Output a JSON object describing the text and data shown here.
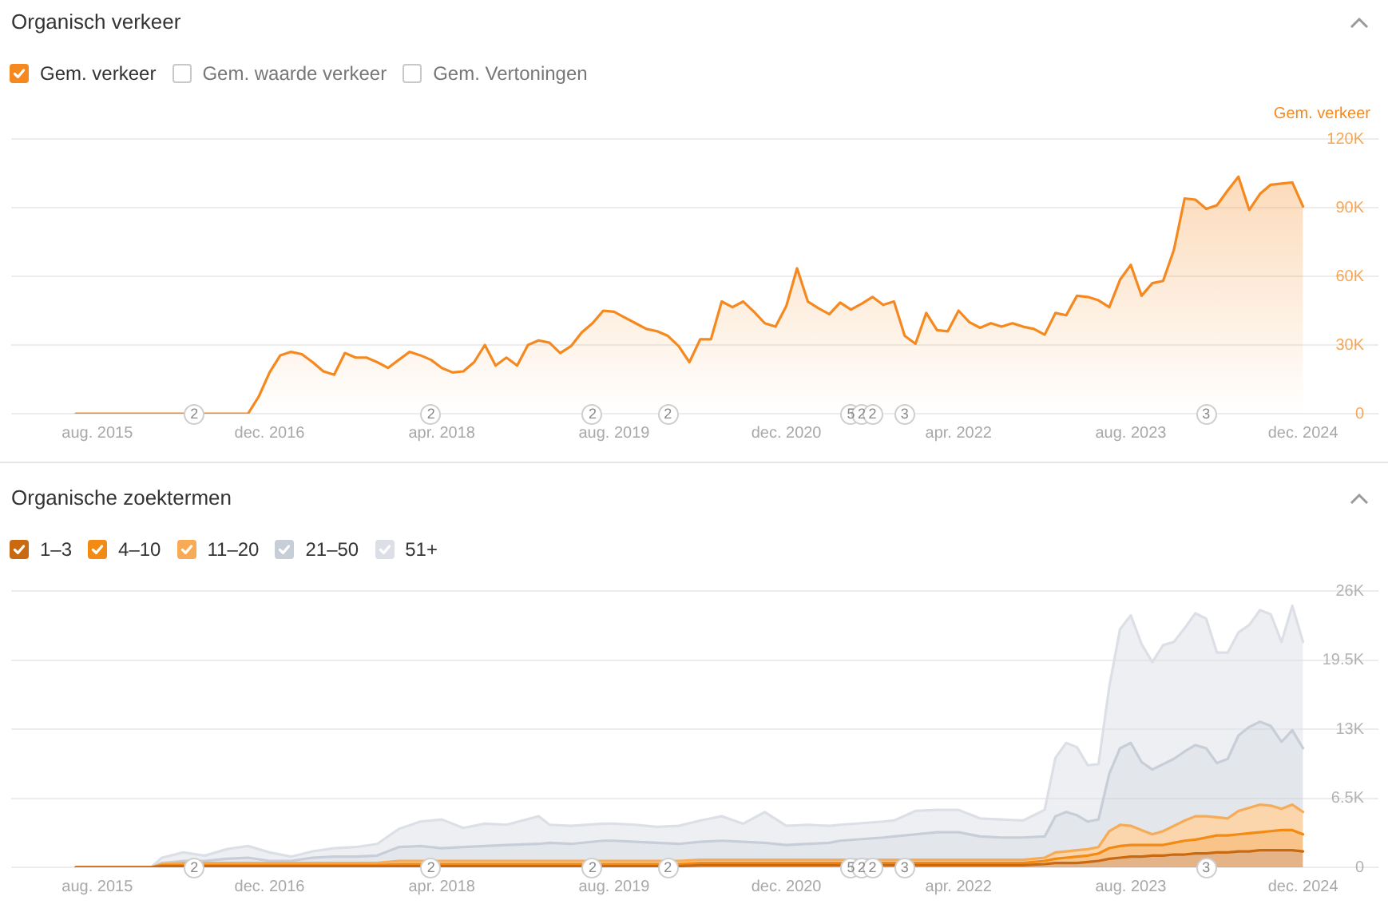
{
  "chart_data": [
    {
      "type": "area",
      "title": "Organisch verkeer",
      "ylabel": "Gem. verkeer",
      "grid": "y",
      "legend": "top left",
      "x": [
        "2015-06",
        "2015-07",
        "2015-08",
        "2015-09",
        "2015-10",
        "2015-11",
        "2015-12",
        "2016-01",
        "2016-02",
        "2016-03",
        "2016-04",
        "2016-05",
        "2016-06",
        "2016-07",
        "2016-08",
        "2016-09",
        "2016-10",
        "2016-11",
        "2016-12",
        "2017-01",
        "2017-02",
        "2017-03",
        "2017-04",
        "2017-05",
        "2017-06",
        "2017-07",
        "2017-08",
        "2017-09",
        "2017-10",
        "2017-11",
        "2017-12",
        "2018-01",
        "2018-02",
        "2018-03",
        "2018-04",
        "2018-05",
        "2018-06",
        "2018-07",
        "2018-08",
        "2018-09",
        "2018-10",
        "2018-11",
        "2018-12",
        "2019-01",
        "2019-02",
        "2019-03",
        "2019-04",
        "2019-05",
        "2019-06",
        "2019-07",
        "2019-08",
        "2019-09",
        "2019-10",
        "2019-11",
        "2019-12",
        "2020-01",
        "2020-02",
        "2020-03",
        "2020-04",
        "2020-05",
        "2020-06",
        "2020-07",
        "2020-08",
        "2020-09",
        "2020-10",
        "2020-11",
        "2020-12",
        "2021-01",
        "2021-02",
        "2021-03",
        "2021-04",
        "2021-05",
        "2021-06",
        "2021-07",
        "2021-08",
        "2021-09",
        "2021-10",
        "2021-11",
        "2021-12",
        "2022-01",
        "2022-02",
        "2022-03",
        "2022-04",
        "2022-05",
        "2022-06",
        "2022-07",
        "2022-08",
        "2022-09",
        "2022-10",
        "2022-11",
        "2022-12",
        "2023-01",
        "2023-02",
        "2023-03",
        "2023-04",
        "2023-05",
        "2023-06",
        "2023-07",
        "2023-08",
        "2023-09",
        "2023-10",
        "2023-11",
        "2023-12",
        "2024-01",
        "2024-02",
        "2024-03",
        "2024-04",
        "2024-05",
        "2024-06",
        "2024-07",
        "2024-08",
        "2024-09",
        "2024-10",
        "2024-11",
        "2024-12"
      ],
      "series": [
        {
          "name": "Gem. verkeer",
          "color": "#f5891f",
          "values": [
            0,
            0,
            0,
            0,
            0,
            0,
            0,
            0,
            0,
            0,
            0,
            0,
            0,
            0,
            0,
            0,
            0,
            7500,
            18000,
            25500,
            27000,
            26000,
            22500,
            18500,
            17000,
            26500,
            24500,
            24500,
            22500,
            20000,
            23500,
            27000,
            25500,
            23500,
            20000,
            18000,
            18500,
            22500,
            30000,
            21000,
            24500,
            21000,
            30000,
            32000,
            31000,
            26500,
            29500,
            35500,
            39500,
            45000,
            44500,
            42000,
            39500,
            37000,
            36000,
            34000,
            29500,
            22500,
            32500,
            32500,
            49000,
            46500,
            49000,
            44500,
            39500,
            38000,
            47000,
            63500,
            49000,
            46000,
            43500,
            48500,
            45500,
            48000,
            51000,
            47500,
            49000,
            34000,
            30500,
            44000,
            36500,
            36000,
            45000,
            40000,
            37500,
            39500,
            38000,
            39500,
            38000,
            37000,
            34500,
            44000,
            43000,
            51500,
            51000,
            49500,
            46500,
            58500,
            65000,
            51500,
            57000,
            58000,
            71500,
            94000,
            93500,
            89500,
            91000,
            97500,
            103500,
            89000,
            96000,
            100000,
            100500,
            101000,
            90500
          ]
        },
        {
          "name": "Gem. waarde verkeer",
          "color": "#c8c8c8",
          "values": [
            null,
            null,
            null,
            null,
            null,
            null,
            null,
            null,
            null,
            null,
            null,
            null,
            null,
            null,
            null,
            null,
            null,
            null,
            null,
            null,
            null,
            null,
            null,
            null,
            null,
            null,
            null,
            null,
            null,
            null,
            null,
            null,
            null,
            null,
            null,
            null,
            null,
            null,
            null,
            null,
            null,
            null,
            null,
            null,
            null,
            null,
            null,
            null,
            null,
            null,
            null,
            null,
            null,
            null,
            null,
            null,
            null,
            null,
            null,
            null,
            null,
            null,
            null,
            null,
            null,
            null,
            null,
            null,
            null,
            null,
            null,
            null,
            null,
            null,
            null,
            null,
            null,
            null,
            null,
            null,
            null,
            null,
            null,
            null,
            null,
            null,
            null,
            null,
            null,
            null,
            null,
            null,
            null,
            null,
            null,
            null,
            null,
            null,
            null,
            null,
            null,
            null,
            null,
            null,
            null,
            null,
            null,
            null,
            null,
            null,
            null,
            null,
            null,
            null,
            null
          ]
        },
        {
          "name": "Gem. Vertoningen",
          "color": "#c8c8c8",
          "values": [
            null,
            null,
            null,
            null,
            null,
            null,
            null,
            null,
            null,
            null,
            null,
            null,
            null,
            null,
            null,
            null,
            null,
            null,
            null,
            null,
            null,
            null,
            null,
            null,
            null,
            null,
            null,
            null,
            null,
            null,
            null,
            null,
            null,
            null,
            null,
            null,
            null,
            null,
            null,
            null,
            null,
            null,
            null,
            null,
            null,
            null,
            null,
            null,
            null,
            null,
            null,
            null,
            null,
            null,
            null,
            null,
            null,
            null,
            null,
            null,
            null,
            null,
            null,
            null,
            null,
            null,
            null,
            null,
            null,
            null,
            null,
            null,
            null,
            null,
            null,
            null,
            null,
            null,
            null,
            null,
            null,
            null,
            null,
            null,
            null,
            null,
            null,
            null,
            null,
            null,
            null,
            null,
            null,
            null,
            null,
            null,
            null,
            null,
            null,
            null,
            null,
            null,
            null,
            null,
            null,
            null,
            null,
            null,
            null,
            null,
            null,
            null,
            null,
            null,
            null
          ]
        }
      ],
      "xlim": [
        "2014-12",
        "2025-07"
      ],
      "xticks": [
        {
          "value": "2015-08",
          "label": "aug. 2015"
        },
        {
          "value": "2016-12",
          "label": "dec. 2016"
        },
        {
          "value": "2018-04",
          "label": "apr. 2018"
        },
        {
          "value": "2019-08",
          "label": "aug. 2019"
        },
        {
          "value": "2020-12",
          "label": "dec. 2020"
        },
        {
          "value": "2022-04",
          "label": "apr. 2022"
        },
        {
          "value": "2023-08",
          "label": "aug. 2023"
        },
        {
          "value": "2024-12",
          "label": "dec. 2024"
        }
      ],
      "ylim": [
        0,
        120000
      ],
      "yticks": [
        0,
        {
          "value": 30000,
          "label": "30K"
        },
        {
          "value": 60000,
          "label": "60K"
        },
        {
          "value": 90000,
          "label": "90K"
        },
        {
          "value": 120000,
          "label": "120K"
        }
      ],
      "annotations": [
        {
          "text": "2",
          "x": "2016-05"
        },
        {
          "text": "2",
          "x": "2018-03"
        },
        {
          "text": "2",
          "x": "2019-06"
        },
        {
          "text": "2",
          "x": "2020-01"
        },
        {
          "text": "5",
          "x": "2021-06"
        },
        {
          "text": "2",
          "x": "2021-07"
        },
        {
          "text": "2",
          "x": "2021-08"
        },
        {
          "text": "3",
          "x": "2021-11"
        },
        {
          "text": "3",
          "x": "2024-03"
        }
      ]
    },
    {
      "type": "area",
      "stacked": true,
      "title": "Organische zoektermen",
      "grid": "y",
      "legend": "top left",
      "x": [
        "2015-06",
        "2016-01",
        "2016-02",
        "2016-04",
        "2016-06",
        "2016-08",
        "2016-10",
        "2016-12",
        "2017-02",
        "2017-04",
        "2017-06",
        "2017-08",
        "2017-10",
        "2017-12",
        "2018-02",
        "2018-04",
        "2018-06",
        "2018-08",
        "2018-10",
        "2019-01",
        "2019-02",
        "2019-04",
        "2019-07",
        "2019-08",
        "2019-10",
        "2019-12",
        "2020-02",
        "2020-04",
        "2020-06",
        "2020-08",
        "2020-10",
        "2020-12",
        "2021-02",
        "2021-04",
        "2021-05",
        "2021-09",
        "2021-10",
        "2021-12",
        "2022-02",
        "2022-04",
        "2022-06",
        "2022-08",
        "2022-10",
        "2022-12",
        "2023-01",
        "2023-02",
        "2023-03",
        "2023-04",
        "2023-05",
        "2023-06",
        "2023-07",
        "2023-08",
        "2023-09",
        "2023-10",
        "2023-11",
        "2023-12",
        "2024-01",
        "2024-02",
        "2024-03",
        "2024-04",
        "2024-05",
        "2024-06",
        "2024-07",
        "2024-08",
        "2024-09",
        "2024-10",
        "2024-11",
        "2024-12"
      ],
      "series": [
        {
          "name": "1–3",
          "color": "#c96a12",
          "values": [
            0,
            0,
            100,
            100,
            100,
            100,
            100,
            100,
            100,
            100,
            100,
            100,
            100,
            100,
            100,
            100,
            100,
            100,
            100,
            100,
            100,
            100,
            100,
            100,
            100,
            100,
            100,
            200,
            200,
            200,
            200,
            200,
            200,
            200,
            200,
            200,
            200,
            200,
            200,
            200,
            200,
            200,
            200,
            300,
            400,
            400,
            400,
            500,
            600,
            800,
            900,
            1000,
            1000,
            1100,
            1100,
            1200,
            1200,
            1300,
            1300,
            1400,
            1400,
            1500,
            1500,
            1600,
            1600,
            1600,
            1600,
            1500
          ]
        },
        {
          "name": "4–10",
          "color": "#f28a14",
          "values": [
            0,
            0,
            100,
            100,
            100,
            100,
            100,
            100,
            100,
            100,
            100,
            100,
            100,
            200,
            200,
            200,
            200,
            200,
            200,
            200,
            200,
            200,
            200,
            200,
            200,
            200,
            200,
            200,
            200,
            200,
            200,
            200,
            200,
            200,
            200,
            200,
            200,
            200,
            200,
            200,
            200,
            200,
            200,
            300,
            400,
            500,
            600,
            600,
            700,
            1000,
            1100,
            1100,
            1100,
            1000,
            1000,
            1100,
            1300,
            1300,
            1500,
            1600,
            1600,
            1600,
            1700,
            1700,
            1800,
            1900,
            1900,
            1600
          ]
        },
        {
          "name": "11–20",
          "color": "#f7ab57",
          "values": [
            0,
            0,
            100,
            200,
            200,
            200,
            200,
            200,
            200,
            200,
            200,
            200,
            200,
            300,
            300,
            300,
            300,
            300,
            300,
            300,
            300,
            300,
            300,
            300,
            300,
            300,
            300,
            300,
            300,
            300,
            300,
            300,
            300,
            300,
            300,
            300,
            300,
            300,
            300,
            300,
            300,
            300,
            300,
            300,
            600,
            600,
            600,
            600,
            600,
            1600,
            2000,
            1800,
            1400,
            1000,
            1300,
            1600,
            1900,
            2200,
            2000,
            1700,
            1600,
            2200,
            2400,
            2600,
            2400,
            2000,
            2400,
            2100
          ]
        },
        {
          "name": "21–50",
          "color": "#c7ced8",
          "values": [
            0,
            0,
            100,
            200,
            200,
            400,
            500,
            200,
            200,
            500,
            600,
            600,
            700,
            1300,
            1400,
            1200,
            1300,
            1400,
            1500,
            1600,
            1700,
            1600,
            1900,
            1900,
            1800,
            1700,
            1600,
            1700,
            1800,
            1700,
            1600,
            1400,
            1500,
            1600,
            1800,
            2100,
            2200,
            2400,
            2600,
            2600,
            2200,
            2100,
            2100,
            2000,
            3400,
            3700,
            3300,
            2600,
            2600,
            5400,
            7200,
            7800,
            6400,
            6100,
            6300,
            6300,
            6500,
            6700,
            6400,
            5100,
            5600,
            7100,
            7600,
            7800,
            7500,
            6300,
            7000,
            6000
          ]
        },
        {
          "name": "51+",
          "color": "#dce0e6",
          "values": [
            0,
            0,
            500,
            800,
            500,
            900,
            1100,
            800,
            400,
            600,
            800,
            900,
            1100,
            1700,
            2300,
            2700,
            1800,
            2100,
            1900,
            2600,
            1700,
            1700,
            1600,
            1600,
            1600,
            1500,
            1700,
            2000,
            2300,
            1700,
            2900,
            1800,
            1800,
            1600,
            1500,
            1500,
            1500,
            2200,
            2100,
            2100,
            1700,
            1700,
            1600,
            2500,
            5500,
            6500,
            6400,
            5300,
            5200,
            8200,
            11200,
            12000,
            11100,
            10100,
            11200,
            11000,
            11600,
            12400,
            12200,
            10400,
            10000,
            9700,
            9600,
            10500,
            10500,
            9400,
            11700,
            10000
          ]
        }
      ],
      "xlim": [
        "2014-12",
        "2025-07"
      ],
      "xticks": [
        {
          "value": "2015-08",
          "label": "aug. 2015"
        },
        {
          "value": "2016-12",
          "label": "dec. 2016"
        },
        {
          "value": "2018-04",
          "label": "apr. 2018"
        },
        {
          "value": "2019-08",
          "label": "aug. 2019"
        },
        {
          "value": "2020-12",
          "label": "dec. 2020"
        },
        {
          "value": "2022-04",
          "label": "apr. 2022"
        },
        {
          "value": "2023-08",
          "label": "aug. 2023"
        },
        {
          "value": "2024-12",
          "label": "dec. 2024"
        }
      ],
      "ylim": [
        0,
        26000
      ],
      "yticks": [
        0,
        {
          "value": 6500,
          "label": "6.5K"
        },
        {
          "value": 13000,
          "label": "13K"
        },
        {
          "value": 19500,
          "label": "19.5K"
        },
        {
          "value": 26000,
          "label": "26K"
        }
      ],
      "annotations": [
        {
          "text": "2",
          "x": "2016-05"
        },
        {
          "text": "2",
          "x": "2018-03"
        },
        {
          "text": "2",
          "x": "2019-06"
        },
        {
          "text": "2",
          "x": "2020-01"
        },
        {
          "text": "5",
          "x": "2021-06"
        },
        {
          "text": "2",
          "x": "2021-07"
        },
        {
          "text": "2",
          "x": "2021-08"
        },
        {
          "text": "3",
          "x": "2021-11"
        },
        {
          "text": "3",
          "x": "2024-03"
        }
      ]
    }
  ]
}
